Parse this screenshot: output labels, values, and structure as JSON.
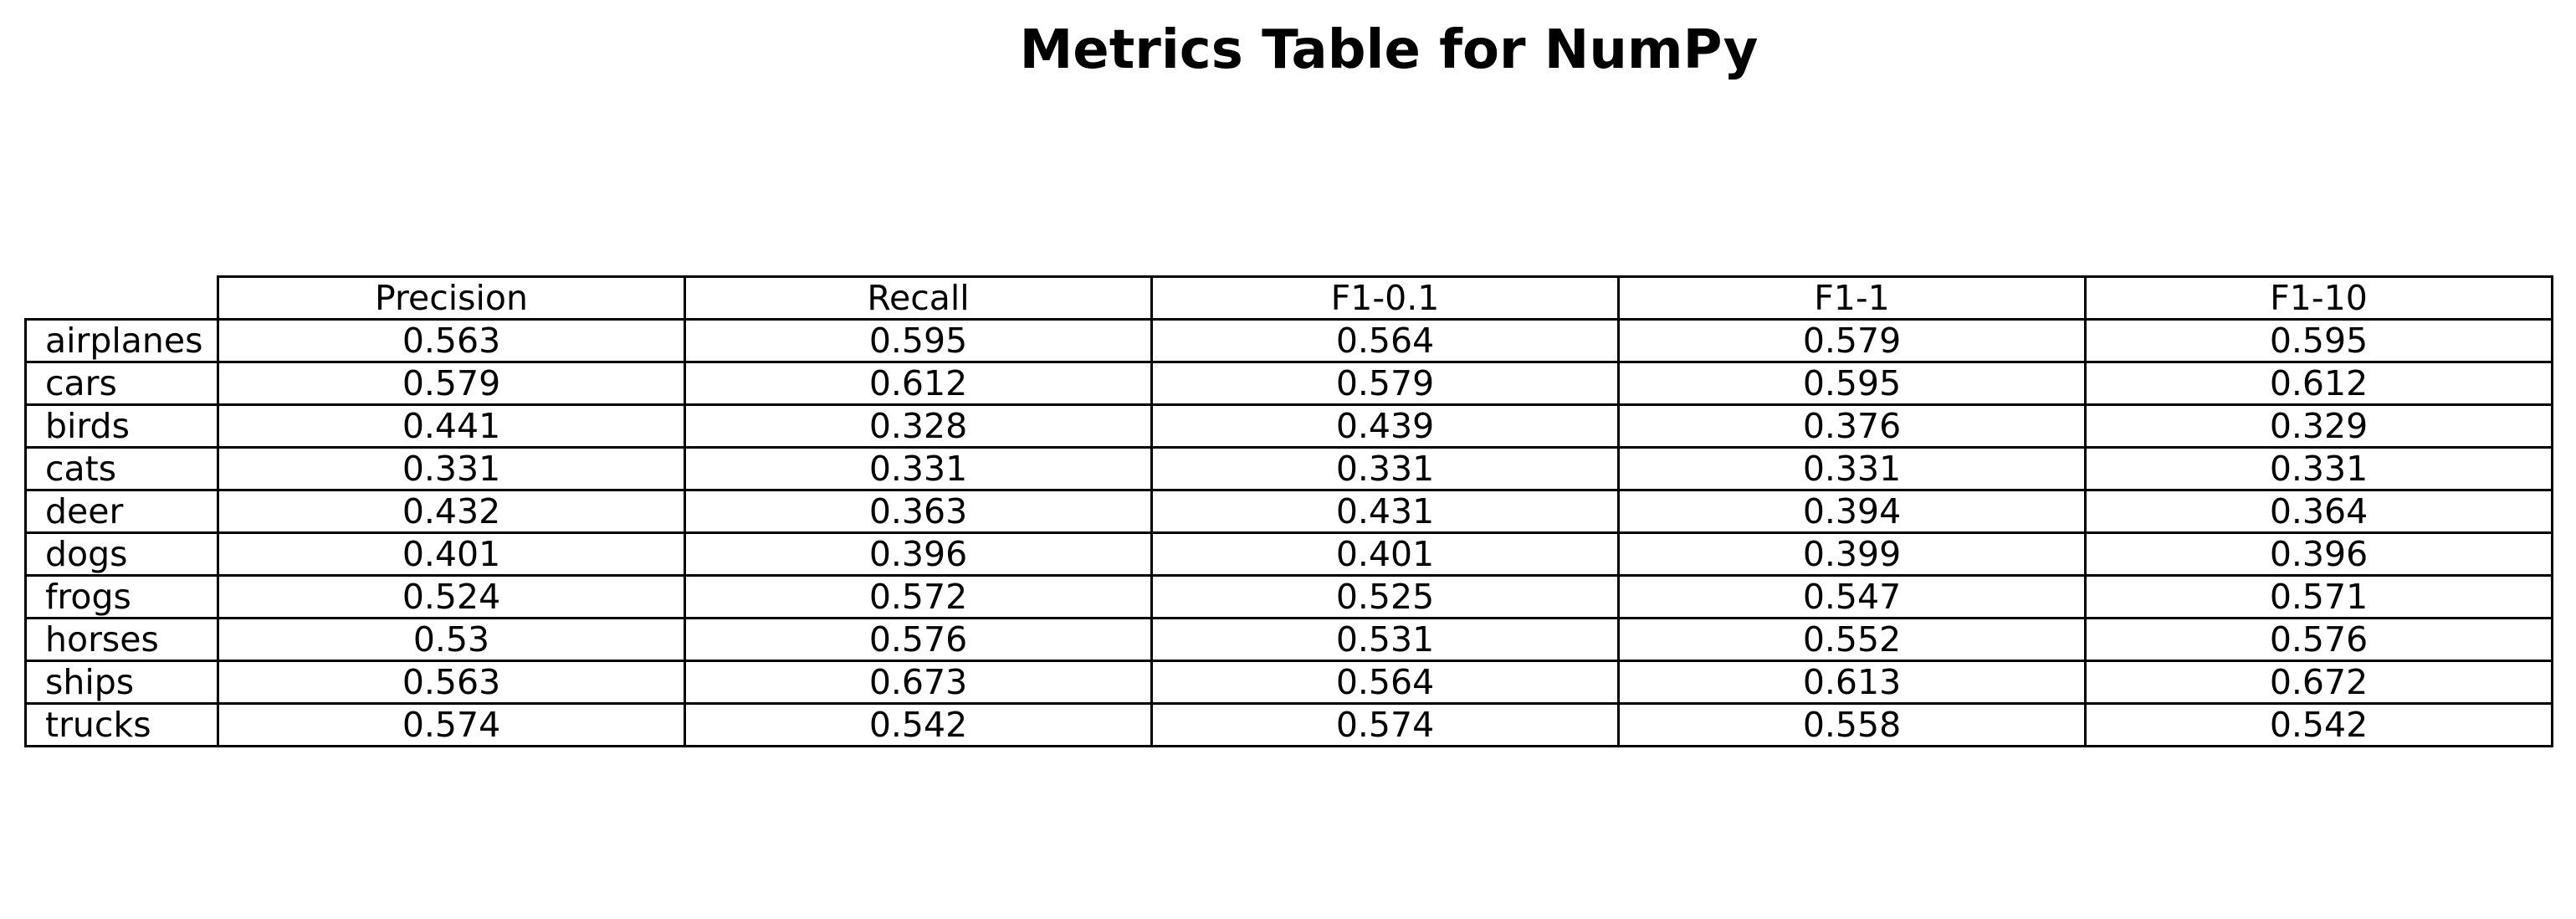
{
  "chart_data": {
    "type": "table",
    "title": "Metrics Table for NumPy",
    "columns": [
      "Precision",
      "Recall",
      "F1-0.1",
      "F1-1",
      "F1-10"
    ],
    "rows": [
      {
        "label": "airplanes",
        "values": [
          "0.563",
          "0.595",
          "0.564",
          "0.579",
          "0.595"
        ]
      },
      {
        "label": "cars",
        "values": [
          "0.579",
          "0.612",
          "0.579",
          "0.595",
          "0.612"
        ]
      },
      {
        "label": "birds",
        "values": [
          "0.441",
          "0.328",
          "0.439",
          "0.376",
          "0.329"
        ]
      },
      {
        "label": "cats",
        "values": [
          "0.331",
          "0.331",
          "0.331",
          "0.331",
          "0.331"
        ]
      },
      {
        "label": "deer",
        "values": [
          "0.432",
          "0.363",
          "0.431",
          "0.394",
          "0.364"
        ]
      },
      {
        "label": "dogs",
        "values": [
          "0.401",
          "0.396",
          "0.401",
          "0.399",
          "0.396"
        ]
      },
      {
        "label": "frogs",
        "values": [
          "0.524",
          "0.572",
          "0.525",
          "0.547",
          "0.571"
        ]
      },
      {
        "label": "horses",
        "values": [
          "0.53",
          "0.576",
          "0.531",
          "0.552",
          "0.576"
        ]
      },
      {
        "label": "ships",
        "values": [
          "0.563",
          "0.673",
          "0.564",
          "0.613",
          "0.672"
        ]
      },
      {
        "label": "trucks",
        "values": [
          "0.574",
          "0.542",
          "0.574",
          "0.558",
          "0.542"
        ]
      }
    ]
  }
}
